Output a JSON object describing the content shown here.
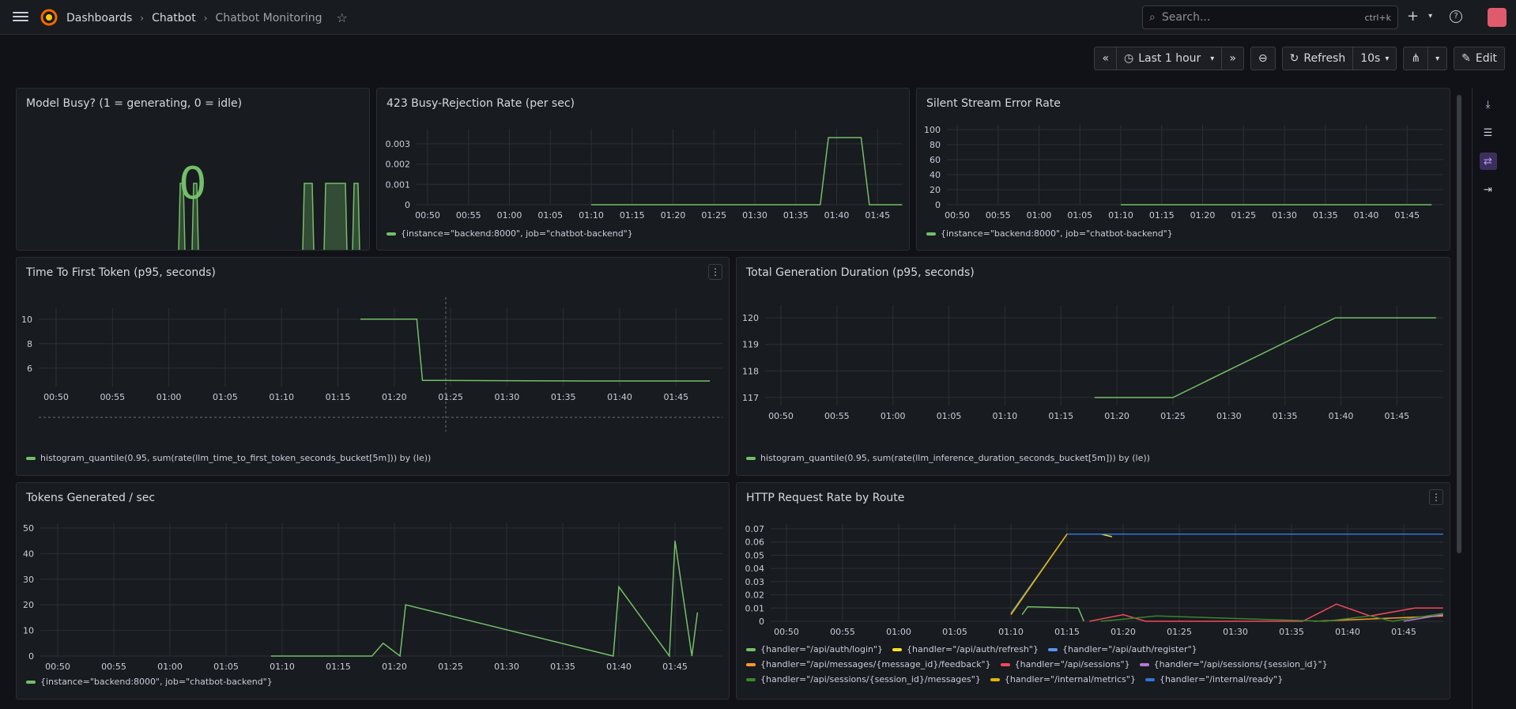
{
  "topbar": {
    "breadcrumbs": [
      "Dashboards",
      "Chatbot",
      "Chatbot Monitoring"
    ],
    "search_placeholder": "Search...",
    "search_shortcut": "ctrl+k"
  },
  "toolbar": {
    "time_range": "Last 1 hour",
    "refresh_label": "Refresh",
    "refresh_interval": "10s",
    "edit_label": "Edit"
  },
  "x_ticks": [
    "00:50",
    "00:55",
    "01:00",
    "01:05",
    "01:10",
    "01:15",
    "01:20",
    "01:25",
    "01:30",
    "01:35",
    "01:40",
    "01:45"
  ],
  "panels": {
    "model_busy": {
      "title": "Model Busy? (1 = generating, 0 = idle)",
      "value": "0"
    },
    "busy_rejection": {
      "title": "423 Busy-Rejection Rate (per sec)",
      "legend": "{instance=\"backend:8000\", job=\"chatbot-backend\"}"
    },
    "silent_stream": {
      "title": "Silent Stream Error Rate",
      "legend": "{instance=\"backend:8000\", job=\"chatbot-backend\"}"
    },
    "ttft": {
      "title": "Time To First Token (p95, seconds)",
      "legend": "histogram_quantile(0.95, sum(rate(llm_time_to_first_token_seconds_bucket[5m])) by (le))"
    },
    "total_duration": {
      "title": "Total Generation Duration (p95, seconds)",
      "legend": "histogram_quantile(0.95, sum(rate(llm_inference_duration_seconds_bucket[5m])) by (le))"
    },
    "tokens": {
      "title": "Tokens Generated / sec",
      "legend": "{instance=\"backend:8000\", job=\"chatbot-backend\"}"
    },
    "http_rate": {
      "title": "HTTP Request Rate by Route"
    }
  },
  "colors": {
    "green": "#73bf69",
    "yellow": "#fade2a",
    "blue": "#5794f2",
    "orange": "#ff9830",
    "red": "#f2495c",
    "purple": "#b877d9",
    "darkgreen": "#37872d",
    "darkyellow": "#e0b400",
    "darkblue": "#3274d9"
  },
  "chart_data": [
    {
      "id": "busy_rejection",
      "type": "line",
      "title": "423 Busy-Rejection Rate (per sec)",
      "x": [
        "01:10",
        "01:38",
        "01:39",
        "01:43",
        "01:44",
        "01:48"
      ],
      "series": [
        {
          "name": "{instance=\"backend:8000\", job=\"chatbot-backend\"}",
          "values": [
            0,
            0,
            0.0033,
            0.0033,
            0,
            0
          ]
        }
      ],
      "yticks": [
        "0",
        "0.001",
        "0.002",
        "0.003"
      ],
      "ylim": [
        0,
        0.0035
      ]
    },
    {
      "id": "silent_stream",
      "type": "line",
      "title": "Silent Stream Error Rate",
      "x": [
        "01:10",
        "01:48"
      ],
      "series": [
        {
          "name": "{instance=\"backend:8000\", job=\"chatbot-backend\"}",
          "values": [
            0,
            0
          ]
        }
      ],
      "yticks": [
        "0",
        "20",
        "40",
        "60",
        "80",
        "100"
      ],
      "ylim": [
        0,
        100
      ]
    },
    {
      "id": "ttft",
      "type": "line",
      "title": "Time To First Token (p95, seconds)",
      "x": [
        "01:17",
        "01:22",
        "01:22.5",
        "01:23.5",
        "01:37",
        "01:48"
      ],
      "series": [
        {
          "name": "histogram_quantile(0.95, sum(rate(llm_time_to_first_token_seconds_bucket[5m])) by (le))",
          "values": [
            10,
            10,
            5.0,
            5.0,
            4.95,
            4.95
          ]
        }
      ],
      "yticks": [
        "6",
        "8",
        "10"
      ],
      "ylim": [
        4.5,
        10.5
      ]
    },
    {
      "id": "total_duration",
      "type": "line",
      "title": "Total Generation Duration (p95, seconds)",
      "x": [
        "01:18",
        "01:25",
        "01:39.5",
        "01:44",
        "01:45",
        "01:48.5"
      ],
      "series": [
        {
          "name": "histogram_quantile(0.95, sum(rate(llm_inference_duration_seconds_bucket[5m])) by (le))",
          "values": [
            117,
            117,
            120,
            120,
            120,
            120
          ]
        }
      ],
      "yticks": [
        "117",
        "118",
        "119",
        "120"
      ],
      "ylim": [
        116.7,
        120.3
      ]
    },
    {
      "id": "tokens",
      "type": "line",
      "title": "Tokens Generated / sec",
      "x": [
        "01:09",
        "01:18",
        "01:19",
        "01:20.5",
        "01:21",
        "01:39.5",
        "01:40",
        "01:44.5",
        "01:45",
        "01:46.5",
        "01:47"
      ],
      "series": [
        {
          "name": "{instance=\"backend:8000\", job=\"chatbot-backend\"}",
          "values": [
            0,
            0,
            5,
            0,
            20,
            0,
            27,
            0,
            45,
            0,
            17
          ]
        }
      ],
      "yticks": [
        "0",
        "10",
        "20",
        "30",
        "40",
        "50"
      ],
      "ylim": [
        0,
        50
      ]
    },
    {
      "id": "http_rate",
      "type": "line",
      "title": "HTTP Request Rate by Route",
      "yticks": [
        "0",
        "0.01",
        "0.02",
        "0.03",
        "0.04",
        "0.05",
        "0.06",
        "0.07"
      ],
      "ylim": [
        0,
        0.07
      ],
      "series": [
        {
          "name": "{handler=\"/api/auth/login\"}",
          "color": "#73bf69",
          "x": [
            "01:11",
            "01:11.5",
            "01:16",
            "01:16.5"
          ],
          "values": [
            0.005,
            0.011,
            0.01,
            0
          ]
        },
        {
          "name": "{handler=\"/api/auth/refresh\"}",
          "color": "#fade2a",
          "x": [
            "01:10",
            "01:15",
            "01:18",
            "01:19"
          ],
          "values": [
            0.005,
            0.066,
            0.066,
            0.064
          ]
        },
        {
          "name": "{handler=\"/api/auth/register\"}",
          "color": "#5794f2",
          "x": [
            "01:10",
            "01:15",
            "01:48.5"
          ],
          "values": [
            0.006,
            0.066,
            0.066
          ]
        },
        {
          "name": "{handler=\"/api/messages/{message_id}/feedback\"}",
          "color": "#ff9830",
          "x": [
            "01:37",
            "01:48.5"
          ],
          "values": [
            0,
            0.004
          ]
        },
        {
          "name": "{handler=\"/api/sessions\"}",
          "color": "#f2495c",
          "x": [
            "01:17",
            "01:20",
            "01:22",
            "01:36",
            "01:39",
            "01:42",
            "01:46",
            "01:48.5"
          ],
          "values": [
            0,
            0.005,
            0,
            0,
            0.013,
            0.004,
            0.01,
            0.01
          ]
        },
        {
          "name": "{handler=\"/api/sessions/{session_id}\"}",
          "color": "#b877d9",
          "x": [
            "01:45",
            "01:48.5"
          ],
          "values": [
            0,
            0.005
          ]
        },
        {
          "name": "{handler=\"/api/sessions/{session_id}/messages\"}",
          "color": "#37872d",
          "x": [
            "01:18",
            "01:23",
            "01:38",
            "01:42",
            "01:44",
            "01:48.5"
          ],
          "values": [
            0,
            0.004,
            0,
            0.004,
            0,
            0.006
          ]
        },
        {
          "name": "{handler=\"/internal/metrics\"}",
          "color": "#e0b400",
          "x": [
            "01:10",
            "01:15",
            "01:48.5"
          ],
          "values": [
            0.005,
            0.066,
            0.066
          ]
        },
        {
          "name": "{handler=\"/internal/ready\"}",
          "color": "#3274d9",
          "x": [
            "01:15",
            "01:48.5"
          ],
          "values": [
            0.066,
            0.066
          ]
        }
      ]
    }
  ]
}
